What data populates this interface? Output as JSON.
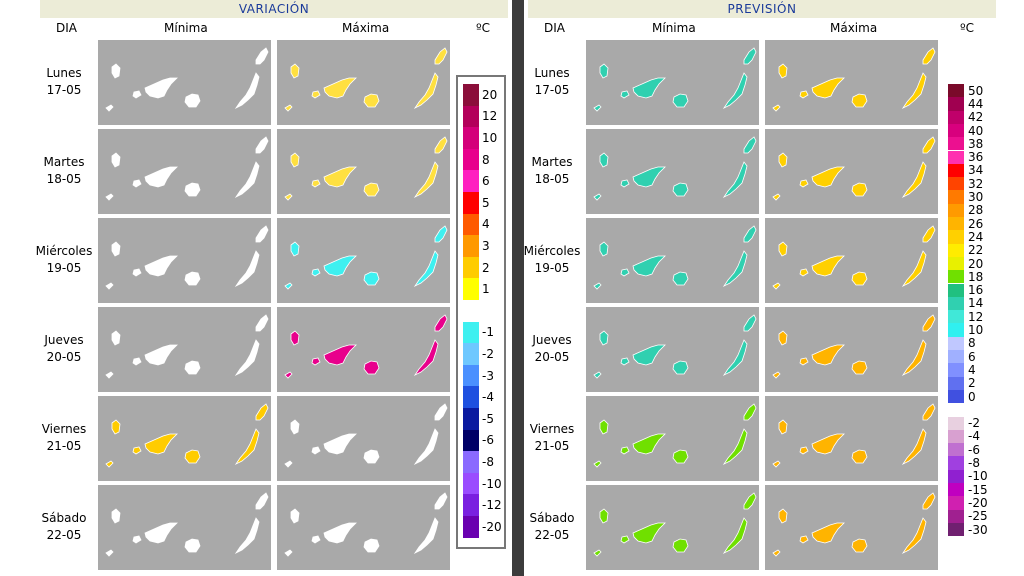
{
  "colors": {
    "title_text": "#1a3a9a",
    "title_bg": "#ececd7",
    "map_background": "#a9a9a9",
    "divider": "#3c3c3c"
  },
  "variacion": {
    "title": "VARIACIÓN",
    "header_day": "DIA",
    "header_min": "Mínima",
    "header_max": "Máxima",
    "unit": "ºC",
    "legend": [
      {
        "label": "20",
        "color": "#8b0e3a"
      },
      {
        "label": "12",
        "color": "#b3005a"
      },
      {
        "label": "10",
        "color": "#d4007a"
      },
      {
        "label": "8",
        "color": "#e8008c"
      },
      {
        "label": "6",
        "color": "#ff1fc0"
      },
      {
        "label": "5",
        "color": "#ff0000"
      },
      {
        "label": "4",
        "color": "#ff5a00"
      },
      {
        "label": "3",
        "color": "#ff9900"
      },
      {
        "label": "2",
        "color": "#ffcc00"
      },
      {
        "label": "1",
        "color": "#ffff00"
      },
      {
        "label": "",
        "color": "#ffffff"
      },
      {
        "label": "-1",
        "color": "#3ef0f0"
      },
      {
        "label": "-2",
        "color": "#6ec8ff"
      },
      {
        "label": "-3",
        "color": "#4a90ff"
      },
      {
        "label": "-4",
        "color": "#1e50e0"
      },
      {
        "label": "-5",
        "color": "#0a1aa0"
      },
      {
        "label": "-6",
        "color": "#000066"
      },
      {
        "label": "-8",
        "color": "#8a6aff"
      },
      {
        "label": "-10",
        "color": "#9a4cff"
      },
      {
        "label": "-12",
        "color": "#7a20e0"
      },
      {
        "label": "-20",
        "color": "#6a00b0"
      }
    ],
    "days": [
      {
        "name": "Lunes",
        "date": "17-05",
        "min_color": "#ffffff",
        "max_color": "#ffe040"
      },
      {
        "name": "Martes",
        "date": "18-05",
        "min_color": "#ffffff",
        "max_color": "#ffe040"
      },
      {
        "name": "Miércoles",
        "date": "19-05",
        "min_color": "#ffffff",
        "max_color": "#3ef0f0"
      },
      {
        "name": "Jueves",
        "date": "20-05",
        "min_color": "#ffffff",
        "max_color": "#e8008c"
      },
      {
        "name": "Viernes",
        "date": "21-05",
        "min_color": "#ffcc00",
        "max_color": "#ffffff"
      },
      {
        "name": "Sábado",
        "date": "22-05",
        "min_color": "#ffffff",
        "max_color": "#ffffff"
      }
    ]
  },
  "prevision": {
    "title": "PREVISIÓN",
    "header_day": "DIA",
    "header_min": "Mínima",
    "header_max": "Máxima",
    "unit": "ºC",
    "legend": [
      {
        "label": "50",
        "color": "#7a0a2a"
      },
      {
        "label": "44",
        "color": "#a00050"
      },
      {
        "label": "42",
        "color": "#c0006a"
      },
      {
        "label": "40",
        "color": "#d8007e"
      },
      {
        "label": "38",
        "color": "#ec1090"
      },
      {
        "label": "36",
        "color": "#ff30b0"
      },
      {
        "label": "34",
        "color": "#ff0000"
      },
      {
        "label": "32",
        "color": "#ff4400"
      },
      {
        "label": "30",
        "color": "#ff7a00"
      },
      {
        "label": "28",
        "color": "#ff9a00"
      },
      {
        "label": "26",
        "color": "#ffb400"
      },
      {
        "label": "24",
        "color": "#ffd000"
      },
      {
        "label": "22",
        "color": "#ffec00"
      },
      {
        "label": "20",
        "color": "#e8f000"
      },
      {
        "label": "18",
        "color": "#70e000"
      },
      {
        "label": "16",
        "color": "#20c080"
      },
      {
        "label": "14",
        "color": "#30d0b0"
      },
      {
        "label": "12",
        "color": "#40e8d8"
      },
      {
        "label": "10",
        "color": "#30f0f0"
      },
      {
        "label": "8",
        "color": "#c0c8ff"
      },
      {
        "label": "6",
        "color": "#a0b0ff"
      },
      {
        "label": "4",
        "color": "#8090ff"
      },
      {
        "label": "2",
        "color": "#6070f0"
      },
      {
        "label": "0",
        "color": "#4050e0"
      },
      {
        "label": "",
        "color": "#ffffff"
      },
      {
        "label": "-2",
        "color": "#e8d0e0"
      },
      {
        "label": "-4",
        "color": "#d8a0d0"
      },
      {
        "label": "-6",
        "color": "#c070d0"
      },
      {
        "label": "-8",
        "color": "#a040e0"
      },
      {
        "label": "-10",
        "color": "#9020d0"
      },
      {
        "label": "-15",
        "color": "#c000c0"
      },
      {
        "label": "-20",
        "color": "#d020b0"
      },
      {
        "label": "-25",
        "color": "#a02090"
      },
      {
        "label": "-30",
        "color": "#702070"
      }
    ],
    "days": [
      {
        "name": "Lunes",
        "date": "17-05",
        "min_color": "#30d0b0",
        "max_color": "#ffd000"
      },
      {
        "name": "Martes",
        "date": "18-05",
        "min_color": "#30d0b0",
        "max_color": "#ffd000"
      },
      {
        "name": "Miércoles",
        "date": "19-05",
        "min_color": "#30d0b0",
        "max_color": "#ffd000"
      },
      {
        "name": "Jueves",
        "date": "20-05",
        "min_color": "#30d0b0",
        "max_color": "#ffb400"
      },
      {
        "name": "Viernes",
        "date": "21-05",
        "min_color": "#70e000",
        "max_color": "#ffb400"
      },
      {
        "name": "Sábado",
        "date": "22-05",
        "min_color": "#70e000",
        "max_color": "#ffb400"
      }
    ]
  }
}
